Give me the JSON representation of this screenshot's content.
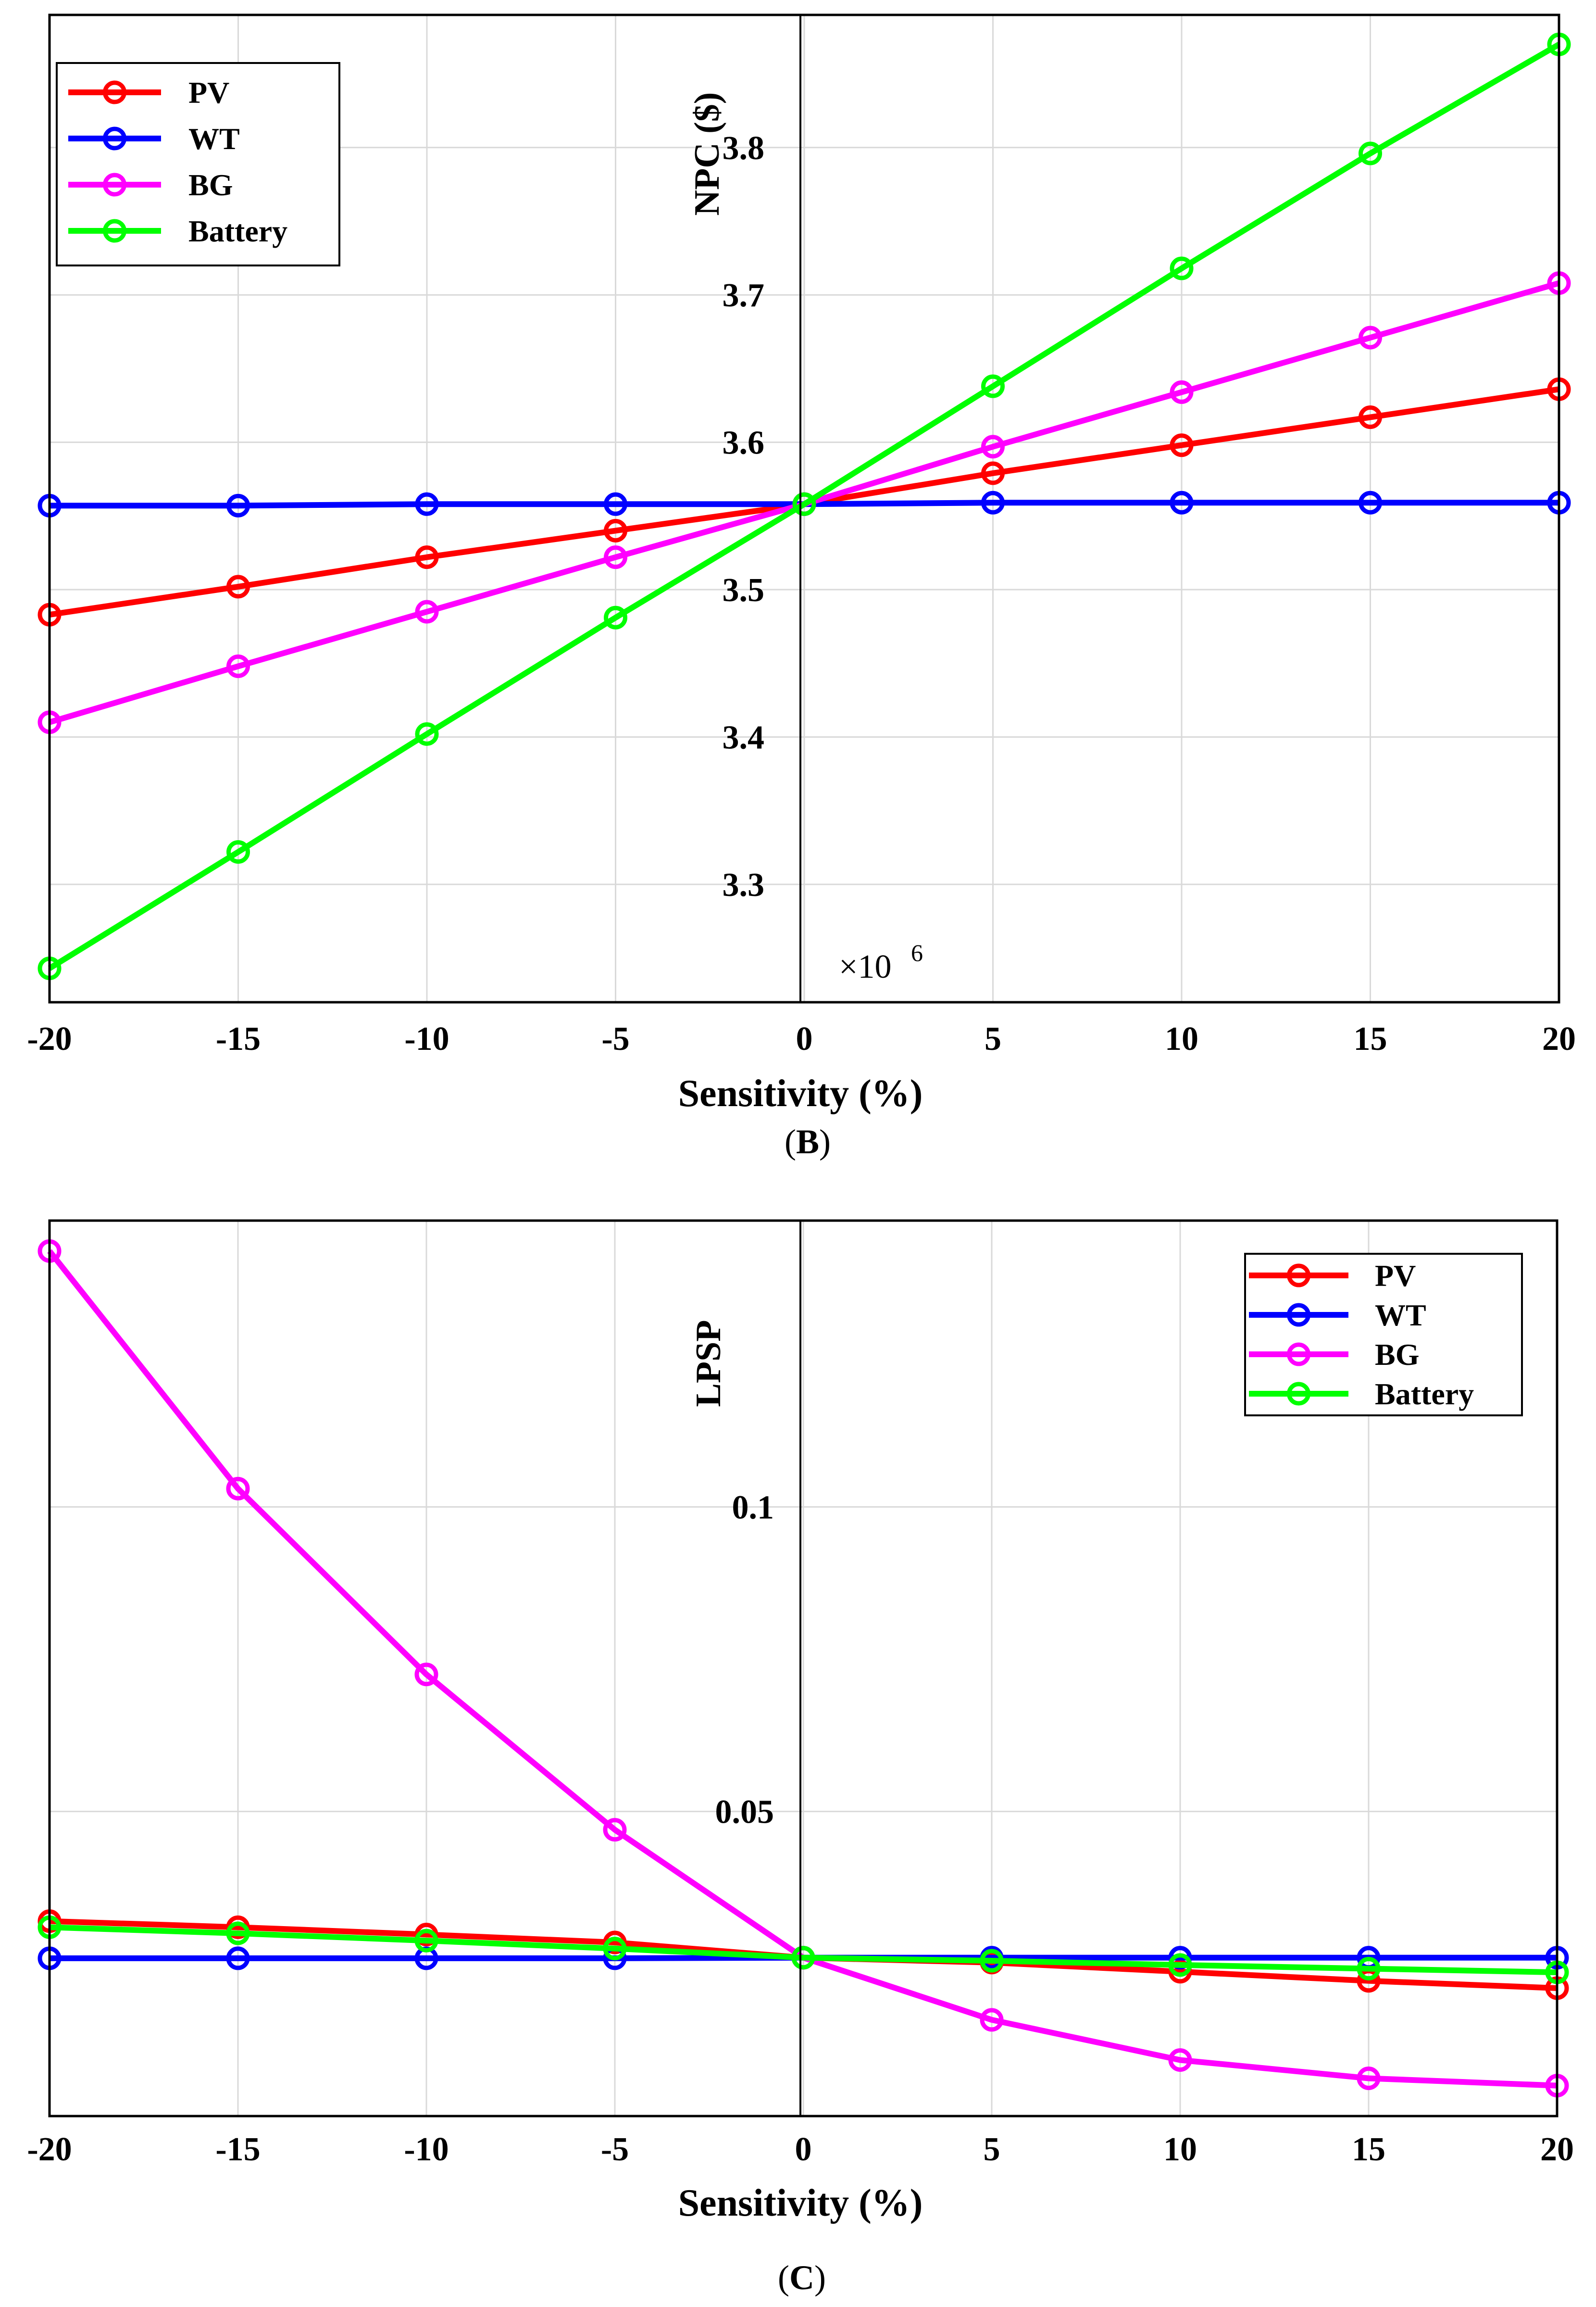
{
  "figure": {
    "caption_b_label": "B",
    "caption_c_label": "C"
  },
  "chart_data": [
    {
      "type": "line",
      "panel": "B",
      "title": "",
      "xlabel": "Sensitivity (%)",
      "ylabel": "NPC ($)",
      "exponent_base": "×10",
      "exponent_power": "6",
      "xlim": [
        -20,
        20
      ],
      "ylim": [
        3.22,
        3.89
      ],
      "x": [
        -20,
        -15,
        -10,
        -5,
        0,
        5,
        10,
        15,
        20
      ],
      "xticks": [
        "-20",
        "-15",
        "-10",
        "-5",
        "0",
        "5",
        "10",
        "15",
        "20"
      ],
      "yticks": [
        3.3,
        3.4,
        3.5,
        3.6,
        3.7,
        3.8
      ],
      "ytick_labels": [
        "3.3",
        "3.4",
        "3.5",
        "3.6",
        "3.7",
        "3.8"
      ],
      "grid": true,
      "legend_position": "top-left",
      "series": [
        {
          "name": "PV",
          "color": "#ff0000",
          "values": [
            3.483,
            3.502,
            3.522,
            3.54,
            3.558,
            3.579,
            3.598,
            3.617,
            3.636
          ]
        },
        {
          "name": "WT",
          "color": "#0000ff",
          "values": [
            3.557,
            3.557,
            3.558,
            3.558,
            3.558,
            3.559,
            3.559,
            3.559,
            3.559
          ]
        },
        {
          "name": "BG",
          "color": "#ff00ff",
          "values": [
            3.41,
            3.448,
            3.485,
            3.522,
            3.558,
            3.597,
            3.634,
            3.671,
            3.708
          ]
        },
        {
          "name": "Battery",
          "color": "#00ff00",
          "values": [
            3.243,
            3.322,
            3.402,
            3.481,
            3.558,
            3.638,
            3.718,
            3.796,
            3.87
          ]
        }
      ]
    },
    {
      "type": "line",
      "panel": "C",
      "title": "",
      "xlabel": "Sensitivity (%)",
      "ylabel": "LPSP",
      "xlim": [
        -20,
        20
      ],
      "ylim": [
        0.0,
        0.147
      ],
      "x": [
        -20,
        -15,
        -10,
        -5,
        0,
        5,
        10,
        15,
        20
      ],
      "xticks": [
        "-20",
        "-15",
        "-10",
        "-5",
        "0",
        "5",
        "10",
        "15",
        "20"
      ],
      "yticks": [
        0.05,
        0.1
      ],
      "ytick_labels": [
        "0.05",
        "0.1"
      ],
      "grid": true,
      "legend_position": "top-right",
      "series": [
        {
          "name": "PV",
          "color": "#ff0000",
          "values": [
            0.032,
            0.031,
            0.0298,
            0.0285,
            0.026,
            0.0252,
            0.0237,
            0.0222,
            0.021
          ]
        },
        {
          "name": "WT",
          "color": "#0000ff",
          "values": [
            0.0259,
            0.0259,
            0.0259,
            0.0259,
            0.026,
            0.026,
            0.026,
            0.026,
            0.026
          ]
        },
        {
          "name": "BG",
          "color": "#ff00ff",
          "values": [
            0.142,
            0.103,
            0.0725,
            0.047,
            0.026,
            0.0158,
            0.0092,
            0.0062,
            0.005
          ]
        },
        {
          "name": "Battery",
          "color": "#00ff00",
          "values": [
            0.031,
            0.03,
            0.0288,
            0.0275,
            0.026,
            0.0255,
            0.0248,
            0.0242,
            0.0236
          ]
        }
      ]
    }
  ]
}
